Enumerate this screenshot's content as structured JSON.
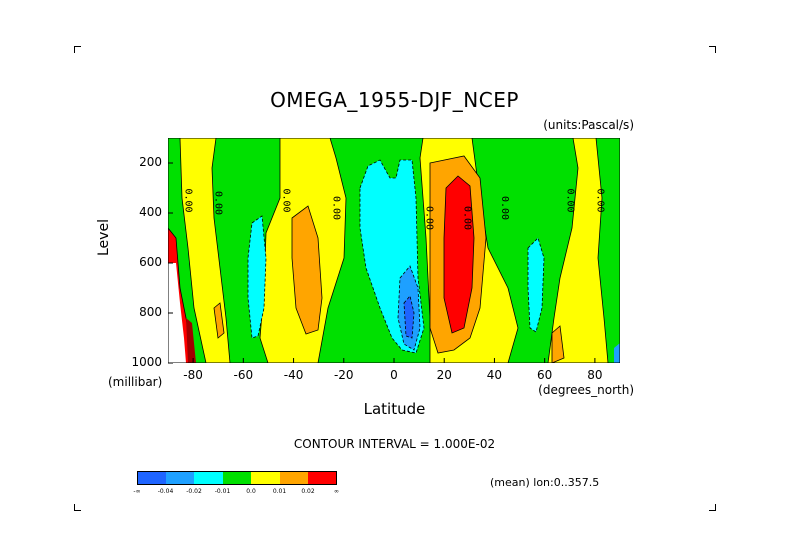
{
  "title": "OMEGA_1955-DJF_NCEP",
  "units_note": "(units:Pascal/s)",
  "contour_interval": "CONTOUR INTERVAL = 1.000E-02",
  "mean_note": "(mean) lon:0..357.5",
  "colors": {
    "blue": "#1e64ff",
    "mid_blue": "#1ea0ff",
    "cyan": "#00ffff",
    "green": "#00e000",
    "yellow": "#ffff00",
    "orange": "#ffa500",
    "red": "#ff0000",
    "dark_red": "#a00000"
  },
  "legend": {
    "labels": [
      "-∞",
      "-0.04",
      "-0.02",
      "-0.01",
      "0.0",
      "0.01",
      "0.02",
      "∞"
    ],
    "colors": [
      "#1e64ff",
      "#1ea0ff",
      "#00ffff",
      "#00e000",
      "#ffff00",
      "#ffa500",
      "#ff0000"
    ]
  },
  "chart_data": {
    "type": "heatmap",
    "title": "OMEGA_1955-DJF_NCEP",
    "xlabel": "Latitude",
    "ylabel": "Level",
    "x_unit": "(degrees_north)",
    "y_unit": "(millibar)",
    "xlim": [
      -90,
      90
    ],
    "ylim": [
      1000,
      100
    ],
    "xticks": [
      -80,
      -60,
      -40,
      -20,
      0,
      20,
      40,
      60,
      80
    ],
    "yticks": [
      200,
      400,
      600,
      800,
      1000
    ],
    "xtick_labels": [
      "-80",
      "-60",
      "-40",
      "-20",
      "0",
      "20",
      "40",
      "60",
      "80"
    ],
    "ytick_labels": [
      "200",
      "400",
      "600",
      "800",
      "1000"
    ],
    "contour_labels": [
      {
        "text": "0.00",
        "lat": -83,
        "lev": 350
      },
      {
        "text": "0.00",
        "lat": -71,
        "lev": 360
      },
      {
        "text": "0.00",
        "lat": -44,
        "lev": 350
      },
      {
        "text": "0.00",
        "lat": -24,
        "lev": 380
      },
      {
        "text": "0.00",
        "lat": 13,
        "lev": 420
      },
      {
        "text": "0.00",
        "lat": 28,
        "lev": 420
      },
      {
        "text": "0.00",
        "lat": 43,
        "lev": 380
      },
      {
        "text": "0.00",
        "lat": 69,
        "lev": 350
      },
      {
        "text": "0.00",
        "lat": 81,
        "lev": 350
      }
    ]
  }
}
